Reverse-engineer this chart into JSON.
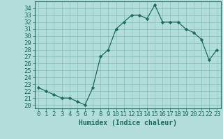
{
  "x": [
    0,
    1,
    2,
    3,
    4,
    5,
    6,
    7,
    8,
    9,
    10,
    11,
    12,
    13,
    14,
    15,
    16,
    17,
    18,
    19,
    20,
    21,
    22,
    23
  ],
  "y": [
    22.5,
    22.0,
    21.5,
    21.0,
    21.0,
    20.5,
    20.0,
    22.5,
    27.0,
    28.0,
    31.0,
    32.0,
    33.0,
    33.0,
    32.5,
    34.5,
    32.0,
    32.0,
    32.0,
    31.0,
    30.5,
    29.5,
    26.5,
    28.0
  ],
  "line_color": "#1a6b5a",
  "marker_color": "#1a6b5a",
  "bg_color": "#b2ddd8",
  "grid_color": "#7ec4bc",
  "axis_color": "#1a6b5a",
  "xlabel": "Humidex (Indice chaleur)",
  "ylim": [
    19.5,
    35.0
  ],
  "xlim": [
    -0.5,
    23.5
  ],
  "yticks": [
    20,
    21,
    22,
    23,
    24,
    25,
    26,
    27,
    28,
    29,
    30,
    31,
    32,
    33,
    34
  ],
  "xticks": [
    0,
    1,
    2,
    3,
    4,
    5,
    6,
    7,
    8,
    9,
    10,
    11,
    12,
    13,
    14,
    15,
    16,
    17,
    18,
    19,
    20,
    21,
    22,
    23
  ],
  "label_fontsize": 7,
  "tick_fontsize": 6.5
}
